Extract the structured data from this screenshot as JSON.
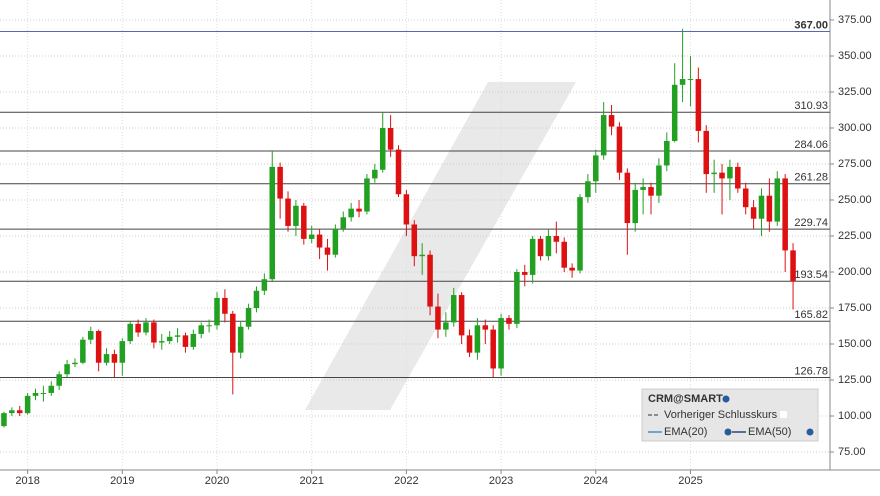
{
  "chart_data": {
    "type": "candlestick",
    "categories": [
      null,
      null,
      null,
      "2018",
      null,
      null,
      null,
      null,
      null,
      null,
      null,
      null,
      null,
      null,
      null,
      "2019",
      null,
      null,
      null,
      null,
      null,
      null,
      null,
      null,
      null,
      null,
      null,
      "2020",
      null,
      null,
      null,
      null,
      null,
      null,
      null,
      null,
      null,
      null,
      null,
      "2021",
      null,
      null,
      null,
      null,
      null,
      null,
      null,
      null,
      null,
      null,
      null,
      "2022",
      null,
      null,
      null,
      null,
      null,
      null,
      null,
      null,
      null,
      null,
      null,
      "2023",
      null,
      null,
      null,
      null,
      null,
      null,
      null,
      null,
      null,
      null,
      null,
      "2024",
      null,
      null,
      null,
      null,
      null,
      null,
      null,
      null,
      null,
      null,
      null,
      "2025",
      null,
      null,
      null,
      null,
      null,
      null,
      null,
      null,
      null,
      null,
      null,
      null,
      null
    ],
    "open": [
      93,
      102,
      104,
      102,
      114,
      116,
      116,
      121,
      129,
      136,
      137,
      153,
      159,
      137,
      143,
      137,
      152,
      164,
      158,
      165,
      151,
      152,
      155,
      156,
      148,
      157,
      163,
      163,
      182,
      171,
      144,
      162,
      175,
      187,
      195,
      273,
      251,
      232,
      246,
      223,
      226,
      217,
      212,
      230,
      238,
      244,
      242,
      265,
      271,
      300,
      285,
      254,
      233,
      211,
      212,
      176,
      160,
      165,
      184,
      156,
      144,
      163,
      160,
      133,
      168,
      164,
      200,
      198,
      223,
      211,
      225,
      221,
      203,
      201,
      252,
      263,
      281,
      309,
      301,
      269,
      234,
      257,
      259,
      253,
      274,
      291,
      330,
      334,
      334,
      298,
      268,
      269,
      265,
      273,
      258,
      245,
      237,
      253,
      235,
      265,
      215
    ],
    "high": [
      103,
      106,
      107,
      116,
      119,
      121,
      124,
      131,
      139,
      140,
      155,
      162,
      160,
      147,
      146,
      154,
      166,
      167,
      168,
      167,
      157,
      159,
      161,
      158,
      160,
      165,
      167,
      186,
      188,
      173,
      166,
      178,
      190,
      199,
      284,
      276,
      256,
      250,
      248,
      232,
      230,
      223,
      233,
      242,
      248,
      250,
      268,
      275,
      311,
      309,
      288,
      257,
      236,
      220,
      215,
      185,
      172,
      189,
      186,
      160,
      168,
      167,
      163,
      171,
      170,
      202,
      205,
      225,
      225,
      230,
      235,
      224,
      206,
      254,
      268,
      285,
      318,
      316,
      304,
      272,
      262,
      265,
      262,
      279,
      297,
      345,
      369,
      350,
      342,
      302,
      278,
      275,
      278,
      276,
      262,
      250,
      258,
      265,
      270,
      268,
      220
    ],
    "low": [
      92,
      100,
      100,
      101,
      111,
      110,
      114,
      118,
      127,
      134,
      136,
      150,
      131,
      135,
      127,
      128,
      150,
      155,
      156,
      147,
      146,
      150,
      151,
      144,
      146,
      154,
      158,
      160,
      165,
      115,
      140,
      160,
      172,
      184,
      193,
      237,
      228,
      225,
      219,
      220,
      209,
      201,
      210,
      228,
      235,
      238,
      240,
      262,
      269,
      280,
      252,
      225,
      204,
      198,
      170,
      154,
      155,
      162,
      150,
      141,
      139,
      150,
      126.78,
      128,
      160,
      161,
      190,
      192,
      208,
      208,
      213,
      200,
      196,
      199,
      248,
      255,
      278,
      295,
      264,
      212,
      228,
      240,
      240,
      248,
      270,
      290,
      318,
      315,
      290,
      255,
      255,
      240,
      250,
      255,
      240,
      230,
      225,
      228,
      232,
      200,
      174
    ],
    "close": [
      102,
      104,
      102,
      114,
      116,
      116,
      121,
      129,
      136,
      137,
      153,
      159,
      137,
      143,
      137,
      152,
      164,
      158,
      165,
      151,
      152,
      155,
      156,
      148,
      157,
      163,
      163,
      182,
      171,
      144,
      162,
      175,
      187,
      195,
      273,
      251,
      232,
      246,
      223,
      226,
      217,
      212,
      230,
      238,
      244,
      242,
      265,
      271,
      300,
      285,
      254,
      233,
      211,
      212,
      176,
      160,
      165,
      184,
      156,
      144,
      163,
      160,
      133,
      168,
      164,
      200,
      198,
      223,
      211,
      225,
      221,
      203,
      201,
      252,
      263,
      281,
      309,
      301,
      269,
      234,
      257,
      259,
      253,
      274,
      291,
      330,
      334,
      334,
      298,
      268,
      269,
      265,
      273,
      258,
      245,
      237,
      253,
      235,
      265,
      215,
      193.54
    ],
    "up_color": "#22a022",
    "down_color": "#dd1111",
    "ylim": [
      62.5,
      388.9
    ],
    "yticks": [
      {
        "value": 75,
        "label": "75.00"
      },
      {
        "value": 100,
        "label": "100.00"
      },
      {
        "value": 125,
        "label": "125.00"
      },
      {
        "value": 150,
        "label": "150.00"
      },
      {
        "value": 175,
        "label": "175.00"
      },
      {
        "value": 200,
        "label": "200.00"
      },
      {
        "value": 225,
        "label": "225.00"
      },
      {
        "value": 250,
        "label": "250.00"
      },
      {
        "value": 275,
        "label": "275.00"
      },
      {
        "value": 300,
        "label": "300.00"
      },
      {
        "value": 325,
        "label": "325.00"
      },
      {
        "value": 350,
        "label": "350.00"
      },
      {
        "value": 375,
        "label": "375.00"
      }
    ],
    "grid": true,
    "levels": [
      {
        "value": 367,
        "label": "367.00"
      },
      {
        "value": 310.93,
        "label": "310.93"
      },
      {
        "value": 284.06,
        "label": "284.06"
      },
      {
        "value": 261.28,
        "label": "261.28"
      },
      {
        "value": 229.74,
        "label": "229.74"
      },
      {
        "value": 193.54,
        "label": "193.54"
      },
      {
        "value": 165.82,
        "label": "165.82"
      },
      {
        "value": 126.78,
        "label": "126.78"
      }
    ],
    "level_color": "#444444",
    "top_level_color": "#5566bb",
    "legend": {
      "title": "CRM@SMART",
      "items": [
        "Vorheriger Schlusskurs",
        "EMA(20)",
        "EMA(50)"
      ]
    }
  }
}
